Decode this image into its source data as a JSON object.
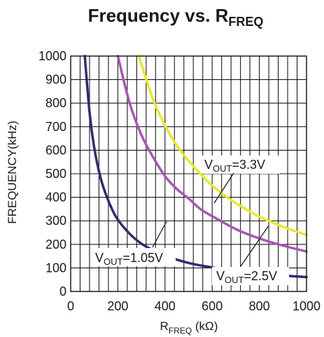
{
  "chart_data": {
    "type": "line",
    "title": {
      "main": "Frequency vs. R",
      "sub": "FREQ"
    },
    "xlabel": {
      "main": "R",
      "sub": "FREQ",
      "unit": " (kΩ)"
    },
    "ylabel": "FREQUENCY(kHz)",
    "xlim": [
      0,
      1000
    ],
    "ylim": [
      0,
      1000
    ],
    "x_ticks": [
      "0",
      "200",
      "400",
      "600",
      "800",
      "1000"
    ],
    "y_ticks": [
      "0",
      "100",
      "200",
      "300",
      "400",
      "500",
      "600",
      "700",
      "800",
      "900",
      "1000"
    ],
    "grid": {
      "x_step": 40,
      "y_step": 100
    },
    "series": [
      {
        "label_main": "V",
        "label_sub": "OUT",
        "label_value": "=1.05V",
        "color": "#2b2d6e",
        "x": [
          60,
          80,
          100,
          125,
          150,
          175,
          200,
          250,
          300,
          350,
          400,
          500,
          600,
          700,
          800,
          900,
          1000
        ],
        "y": [
          1000,
          760,
          610,
          490,
          410,
          350,
          305,
          245,
          203,
          175,
          152,
          121,
          102,
          88,
          77,
          68,
          61
        ]
      },
      {
        "label_main": "V",
        "label_sub": "OUT",
        "label_value": "=2.5V",
        "color": "#a855b5",
        "x": [
          200,
          250,
          300,
          350,
          400,
          450,
          500,
          550,
          600,
          700,
          800,
          900,
          1000
        ],
        "y": [
          1000,
          800,
          665,
          570,
          490,
          435,
          395,
          350,
          320,
          265,
          225,
          195,
          170
        ]
      },
      {
        "label_main": "V",
        "label_sub": "OUT",
        "label_value": "=3.3V",
        "color": "#e8e830",
        "x": [
          290,
          300,
          350,
          400,
          450,
          500,
          550,
          600,
          650,
          700,
          800,
          900,
          1000
        ],
        "y": [
          1000,
          965,
          815,
          705,
          620,
          555,
          500,
          450,
          410,
          375,
          318,
          275,
          240
        ]
      }
    ]
  }
}
